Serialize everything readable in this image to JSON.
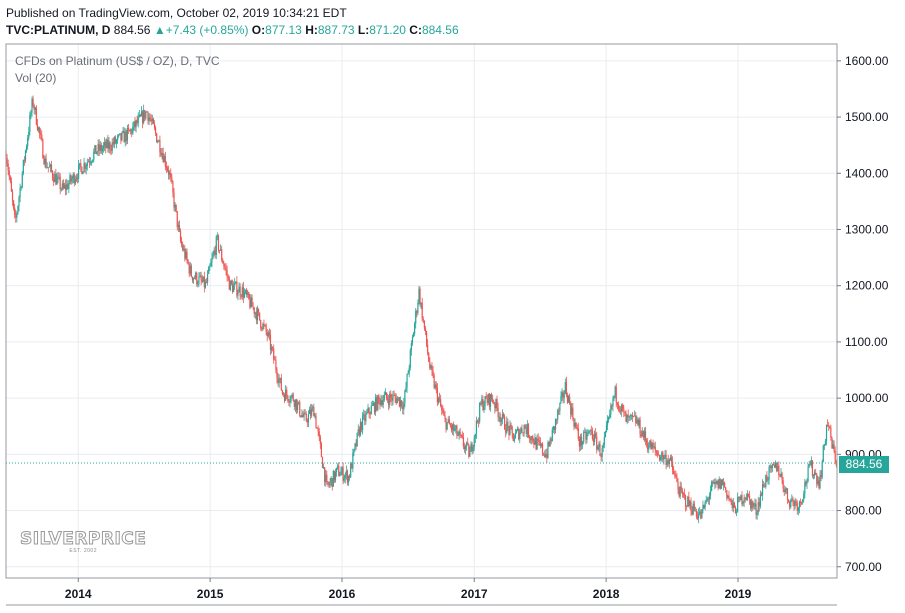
{
  "header": {
    "published": "Published on TradingView.com, October 02, 2019 10:34:21 EDT",
    "symbol": "TVC:PLATINUM, D",
    "last": "884.56",
    "change_arrow": "▲",
    "change": "+7.43 (+0.85%)",
    "open_label": "O:",
    "open": "877.13",
    "high_label": "H:",
    "high": "887.73",
    "low_label": "L:",
    "low": "871.20",
    "close_label": "C:",
    "close": "884.56"
  },
  "legend": {
    "title": "CFDs on Platinum (US$ / OZ), D, TVC",
    "volume": "Vol (20)"
  },
  "price_tag": "884.56",
  "watermark": {
    "text": "SILVERPRICE",
    "sub": "EST. 2002"
  },
  "colors": {
    "up": "#26a69a",
    "down": "#ef5350",
    "accent": "#26a69a",
    "grid": "#e9ecf1",
    "axis": "#787b86"
  },
  "chart_data": {
    "type": "candlestick",
    "title": "CFDs on Platinum (US$ / OZ), D, TVC",
    "xlabel": "",
    "ylabel": "",
    "ylim": [
      680,
      1630
    ],
    "y_ticks": [
      700,
      800,
      900,
      1000,
      1100,
      1200,
      1300,
      1400,
      1500,
      1600
    ],
    "y_tick_labels": [
      "700.00",
      "800.00",
      "900.00",
      "1000.00",
      "1100.00",
      "1200.00",
      "1300.00",
      "1400.00",
      "1500.00",
      "1600.00"
    ],
    "x_range": [
      "2013-06-15",
      "2019-10-02"
    ],
    "x_ticks": [
      "2014-01-01",
      "2015-01-01",
      "2016-01-01",
      "2017-01-01",
      "2018-01-01",
      "2019-01-01"
    ],
    "x_tick_labels": [
      "2014",
      "2015",
      "2016",
      "2017",
      "2018",
      "2019"
    ],
    "last_price": 884.56,
    "grid": true,
    "series": [
      {
        "x": [
          "2013-06-15",
          "2013-07-10",
          "2013-08-28",
          "2013-10-01",
          "2013-11-20",
          "2014-01-10",
          "2014-02-20",
          "2014-04-01",
          "2014-05-20",
          "2014-07-10",
          "2014-08-15",
          "2014-09-10",
          "2014-10-10",
          "2014-11-10",
          "2014-12-20",
          "2015-01-20",
          "2015-02-25",
          "2015-04-01",
          "2015-05-10",
          "2015-06-10",
          "2015-07-20",
          "2015-08-20",
          "2015-09-20",
          "2015-10-15",
          "2015-11-20",
          "2015-12-20",
          "2016-01-20",
          "2016-02-20",
          "2016-03-20",
          "2016-04-20",
          "2016-05-30",
          "2016-06-20",
          "2016-08-01",
          "2016-09-01",
          "2016-10-10",
          "2016-11-10",
          "2016-12-20",
          "2017-01-20",
          "2017-02-20",
          "2017-03-20",
          "2017-04-20",
          "2017-05-20",
          "2017-06-20",
          "2017-07-20",
          "2017-08-20",
          "2017-09-10",
          "2017-10-20",
          "2017-11-20",
          "2017-12-20",
          "2018-01-25",
          "2018-02-25",
          "2018-03-25",
          "2018-04-25",
          "2018-05-25",
          "2018-06-25",
          "2018-07-25",
          "2018-08-20",
          "2018-09-20",
          "2018-10-20",
          "2018-11-20",
          "2018-12-20",
          "2019-01-20",
          "2019-02-20",
          "2019-03-20",
          "2019-04-20",
          "2019-05-20",
          "2019-06-20",
          "2019-07-20",
          "2019-08-15",
          "2019-09-05",
          "2019-09-20",
          "2019-10-02"
        ],
        "close": [
          1440,
          1310,
          1530,
          1420,
          1370,
          1410,
          1440,
          1450,
          1470,
          1510,
          1450,
          1400,
          1280,
          1220,
          1200,
          1280,
          1200,
          1190,
          1150,
          1110,
          1010,
          1000,
          960,
          980,
          840,
          870,
          860,
          950,
          980,
          1000,
          1000,
          990,
          1190,
          1050,
          960,
          940,
          900,
          990,
          1000,
          960,
          930,
          950,
          920,
          900,
          970,
          1020,
          920,
          940,
          900,
          1010,
          960,
          960,
          920,
          900,
          890,
          830,
          810,
          790,
          840,
          850,
          800,
          830,
          800,
          860,
          880,
          820,
          810,
          880,
          850,
          960,
          910,
          884.56
        ]
      }
    ]
  }
}
